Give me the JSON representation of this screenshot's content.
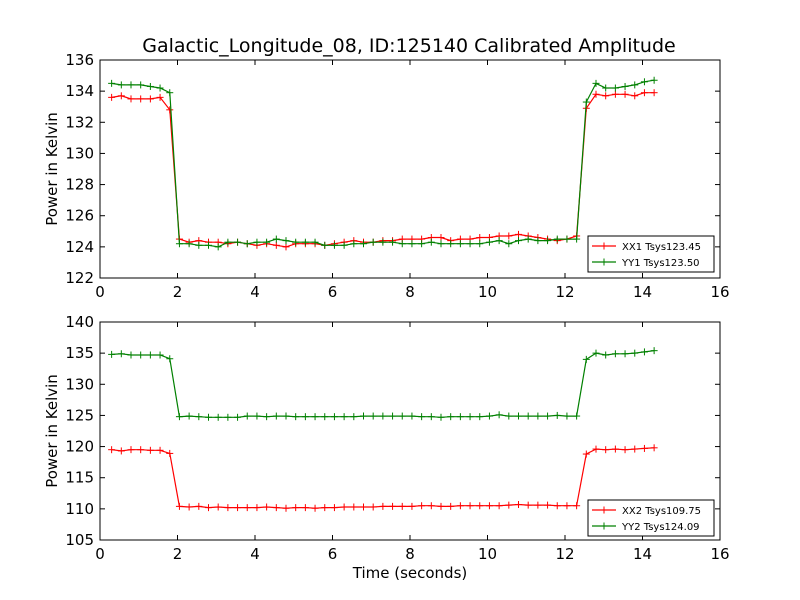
{
  "title": "Galactic_Longitude_08, ID:125140 Calibrated Amplitude",
  "chart_data": [
    {
      "type": "line",
      "ylabel": "Power in Kelvin",
      "xlabel": "",
      "xlim": [
        0,
        16
      ],
      "ylim": [
        122,
        136
      ],
      "xticks": [
        0,
        2,
        4,
        6,
        8,
        10,
        12,
        14,
        16
      ],
      "yticks": [
        122,
        124,
        126,
        128,
        130,
        132,
        134,
        136
      ],
      "grid": false,
      "legend_position": "lower-right",
      "x": [
        0.3,
        0.55,
        0.8,
        1.05,
        1.3,
        1.55,
        1.8,
        2.05,
        2.3,
        2.55,
        2.8,
        3.05,
        3.3,
        3.55,
        3.8,
        4.05,
        4.3,
        4.55,
        4.8,
        5.05,
        5.3,
        5.55,
        5.8,
        6.05,
        6.3,
        6.55,
        6.8,
        7.05,
        7.3,
        7.55,
        7.8,
        8.05,
        8.3,
        8.55,
        8.8,
        9.05,
        9.3,
        9.55,
        9.8,
        10.05,
        10.3,
        10.55,
        10.8,
        11.05,
        11.3,
        11.55,
        11.8,
        12.05,
        12.3,
        12.55,
        12.8,
        13.05,
        13.3,
        13.55,
        13.8,
        14.05,
        14.3
      ],
      "series": [
        {
          "name": "XX1 Tsys123.45",
          "color": "#ff0000",
          "values": [
            133.6,
            133.7,
            133.5,
            133.5,
            133.5,
            133.6,
            132.8,
            124.5,
            124.3,
            124.4,
            124.3,
            124.3,
            124.2,
            124.3,
            124.2,
            124.1,
            124.2,
            124.1,
            124.0,
            124.2,
            124.2,
            124.2,
            124.1,
            124.2,
            124.3,
            124.4,
            124.3,
            124.3,
            124.4,
            124.4,
            124.5,
            124.5,
            124.5,
            124.6,
            124.6,
            124.4,
            124.5,
            124.5,
            124.6,
            124.6,
            124.7,
            124.7,
            124.8,
            124.7,
            124.6,
            124.5,
            124.4,
            124.5,
            124.7,
            132.9,
            133.8,
            133.7,
            133.8,
            133.8,
            133.7,
            133.9,
            133.9
          ]
        },
        {
          "name": "YY1 Tsys123.50",
          "color": "#008000",
          "values": [
            134.5,
            134.4,
            134.4,
            134.4,
            134.3,
            134.2,
            133.9,
            124.2,
            124.2,
            124.1,
            124.1,
            124.0,
            124.3,
            124.3,
            124.2,
            124.3,
            124.3,
            124.5,
            124.4,
            124.3,
            124.3,
            124.3,
            124.1,
            124.1,
            124.1,
            124.2,
            124.2,
            124.3,
            124.3,
            124.3,
            124.2,
            124.2,
            124.2,
            124.3,
            124.2,
            124.2,
            124.2,
            124.2,
            124.2,
            124.3,
            124.4,
            124.2,
            124.4,
            124.5,
            124.4,
            124.4,
            124.5,
            124.5,
            124.5,
            133.3,
            134.5,
            134.2,
            134.2,
            134.3,
            134.4,
            134.6,
            134.7
          ]
        }
      ]
    },
    {
      "type": "line",
      "ylabel": "Power in Kelvin",
      "xlabel": "Time (seconds)",
      "xlim": [
        0,
        16
      ],
      "ylim": [
        105,
        140
      ],
      "xticks": [
        0,
        2,
        4,
        6,
        8,
        10,
        12,
        14,
        16
      ],
      "yticks": [
        105,
        110,
        115,
        120,
        125,
        130,
        135,
        140
      ],
      "grid": false,
      "legend_position": "lower-right",
      "x": [
        0.3,
        0.55,
        0.8,
        1.05,
        1.3,
        1.55,
        1.8,
        2.05,
        2.3,
        2.55,
        2.8,
        3.05,
        3.3,
        3.55,
        3.8,
        4.05,
        4.3,
        4.55,
        4.8,
        5.05,
        5.3,
        5.55,
        5.8,
        6.05,
        6.3,
        6.55,
        6.8,
        7.05,
        7.3,
        7.55,
        7.8,
        8.05,
        8.3,
        8.55,
        8.8,
        9.05,
        9.3,
        9.55,
        9.8,
        10.05,
        10.3,
        10.55,
        10.8,
        11.05,
        11.3,
        11.55,
        11.8,
        12.05,
        12.3,
        12.55,
        12.8,
        13.05,
        13.3,
        13.55,
        13.8,
        14.05,
        14.3
      ],
      "series": [
        {
          "name": "XX2 Tsys109.75",
          "color": "#ff0000",
          "values": [
            119.5,
            119.3,
            119.5,
            119.5,
            119.4,
            119.4,
            118.9,
            110.4,
            110.3,
            110.4,
            110.2,
            110.3,
            110.2,
            110.2,
            110.2,
            110.2,
            110.3,
            110.2,
            110.1,
            110.2,
            110.2,
            110.1,
            110.2,
            110.2,
            110.3,
            110.3,
            110.3,
            110.3,
            110.4,
            110.4,
            110.4,
            110.4,
            110.5,
            110.5,
            110.4,
            110.4,
            110.5,
            110.5,
            110.5,
            110.5,
            110.5,
            110.6,
            110.7,
            110.6,
            110.6,
            110.6,
            110.5,
            110.5,
            110.5,
            118.8,
            119.6,
            119.5,
            119.6,
            119.5,
            119.6,
            119.7,
            119.8
          ]
        },
        {
          "name": "YY2 Tsys124.09",
          "color": "#008000",
          "values": [
            134.8,
            134.9,
            134.7,
            134.7,
            134.7,
            134.7,
            134.1,
            124.8,
            124.9,
            124.8,
            124.7,
            124.7,
            124.7,
            124.7,
            124.9,
            124.9,
            124.8,
            124.9,
            124.9,
            124.8,
            124.8,
            124.8,
            124.8,
            124.8,
            124.8,
            124.8,
            124.9,
            124.9,
            124.9,
            124.9,
            124.9,
            124.9,
            124.8,
            124.8,
            124.7,
            124.8,
            124.8,
            124.8,
            124.8,
            124.9,
            125.1,
            124.9,
            124.9,
            124.9,
            124.9,
            124.9,
            125.0,
            124.9,
            124.9,
            134.0,
            135.0,
            134.7,
            134.9,
            134.9,
            135.0,
            135.2,
            135.4
          ]
        }
      ]
    }
  ]
}
